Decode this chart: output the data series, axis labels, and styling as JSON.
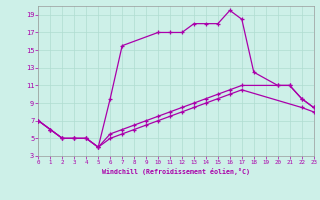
{
  "xlabel": "Windchill (Refroidissement éolien,°C)",
  "background_color": "#cdf0e8",
  "line_color": "#aa00aa",
  "xlim": [
    0,
    23
  ],
  "ylim": [
    3,
    20
  ],
  "xticks": [
    0,
    1,
    2,
    3,
    4,
    5,
    6,
    7,
    8,
    9,
    10,
    11,
    12,
    13,
    14,
    15,
    16,
    17,
    18,
    19,
    20,
    21,
    22,
    23
  ],
  "yticks": [
    3,
    5,
    7,
    9,
    11,
    13,
    15,
    17,
    19
  ],
  "curve1_x": [
    0,
    1,
    2,
    3,
    4,
    5,
    6,
    7,
    10,
    11,
    12,
    13,
    14,
    15,
    16,
    17,
    18,
    20,
    21,
    22,
    23
  ],
  "curve1_y": [
    7,
    6,
    5,
    5,
    5,
    4,
    9.5,
    15.5,
    17,
    17,
    17,
    18,
    18,
    18,
    19.5,
    18.5,
    12.5,
    11,
    11,
    9.5,
    8.5
  ],
  "curve2_x": [
    0,
    1,
    2,
    3,
    4,
    5,
    6,
    7,
    8,
    9,
    10,
    11,
    12,
    13,
    14,
    15,
    16,
    17,
    20,
    21,
    22,
    23
  ],
  "curve2_y": [
    7,
    6,
    5,
    5,
    5,
    4,
    5.5,
    6.0,
    6.5,
    7.0,
    7.5,
    8.0,
    8.5,
    9.0,
    9.5,
    10.0,
    10.5,
    11.0,
    11.0,
    11.0,
    9.5,
    8.5
  ],
  "curve3_x": [
    0,
    1,
    2,
    3,
    4,
    5,
    6,
    7,
    8,
    9,
    10,
    11,
    12,
    13,
    14,
    15,
    16,
    17,
    22,
    23
  ],
  "curve3_y": [
    7,
    6,
    5,
    5,
    5,
    4,
    5.0,
    5.5,
    6.0,
    6.5,
    7.0,
    7.5,
    8.0,
    8.5,
    9.0,
    9.5,
    10.0,
    10.5,
    8.5,
    8.0
  ]
}
